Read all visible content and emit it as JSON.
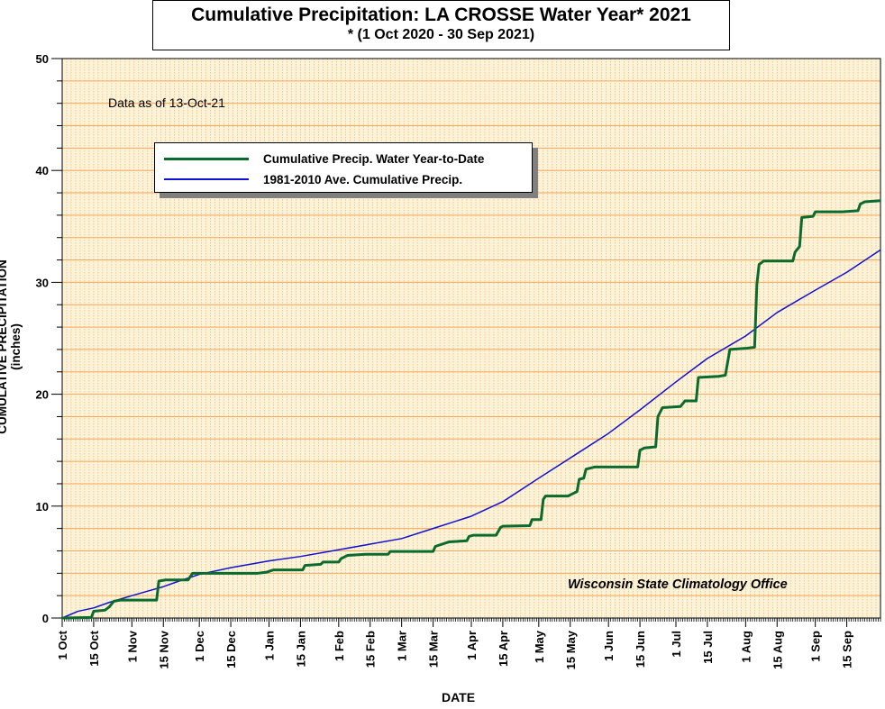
{
  "chart_data": {
    "type": "line",
    "title": "Cumulative Precipitation: LA CROSSE Water Year* 2021",
    "subtitle": "* (1 Oct 2020 - 30 Sep 2021)",
    "xlabel": "DATE",
    "ylabel": "CUMULATIVE PRECIPITATION (inches)",
    "ylim": [
      0,
      50
    ],
    "xlim": [
      "2020-10-01",
      "2021-09-30"
    ],
    "yticks": [
      "0",
      "10",
      "20",
      "30",
      "40",
      "50"
    ],
    "xticks": [
      "1 Oct",
      "15 Oct",
      "1 Nov",
      "15 Nov",
      "1 Dec",
      "15 Dec",
      "1 Jan",
      "15 Jan",
      "1 Feb",
      "15 Feb",
      "1 Mar",
      "15 Mar",
      "1 Apr",
      "15 Apr",
      "1 May",
      "15 May",
      "1 Jun",
      "15 Jun",
      "1 Jul",
      "15 Jul",
      "1 Aug",
      "15 Aug",
      "1 Sep",
      "15 Sep"
    ],
    "annotation_asof": "Data as of 13-Oct-21",
    "annotation_credit": "Wisconsin State Climatology Office",
    "grid": true,
    "legend_position": "top-left",
    "background_color": "#fdf3d8",
    "grid_color": "#f5a75a",
    "series": [
      {
        "name": "Cumulative Precip.  Water Year-to-Date",
        "color": "#0a6b2d",
        "points": [
          [
            "2020-10-01",
            0.0
          ],
          [
            "2020-10-14",
            0.05
          ],
          [
            "2020-10-15",
            0.6
          ],
          [
            "2020-10-20",
            0.7
          ],
          [
            "2020-10-22",
            1.0
          ],
          [
            "2020-10-24",
            1.5
          ],
          [
            "2020-10-27",
            1.6
          ],
          [
            "2020-11-12",
            1.6
          ],
          [
            "2020-11-13",
            3.3
          ],
          [
            "2020-11-16",
            3.4
          ],
          [
            "2020-11-26",
            3.4
          ],
          [
            "2020-11-28",
            4.0
          ],
          [
            "2020-12-27",
            4.0
          ],
          [
            "2020-12-31",
            4.1
          ],
          [
            "2021-01-03",
            4.3
          ],
          [
            "2021-01-16",
            4.3
          ],
          [
            "2021-01-17",
            4.7
          ],
          [
            "2021-01-24",
            4.8
          ],
          [
            "2021-01-25",
            5.0
          ],
          [
            "2021-02-01",
            5.0
          ],
          [
            "2021-02-02",
            5.3
          ],
          [
            "2021-02-05",
            5.6
          ],
          [
            "2021-02-13",
            5.7
          ],
          [
            "2021-02-23",
            5.7
          ],
          [
            "2021-02-24",
            5.95
          ],
          [
            "2021-03-15",
            5.95
          ],
          [
            "2021-03-16",
            6.4
          ],
          [
            "2021-03-22",
            6.8
          ],
          [
            "2021-03-30",
            6.9
          ],
          [
            "2021-03-31",
            7.3
          ],
          [
            "2021-04-02",
            7.4
          ],
          [
            "2021-04-12",
            7.4
          ],
          [
            "2021-04-14",
            8.1
          ],
          [
            "2021-04-15",
            8.2
          ],
          [
            "2021-04-27",
            8.25
          ],
          [
            "2021-04-28",
            8.8
          ],
          [
            "2021-05-02",
            8.8
          ],
          [
            "2021-05-03",
            10.6
          ],
          [
            "2021-05-04",
            10.9
          ],
          [
            "2021-05-14",
            10.9
          ],
          [
            "2021-05-18",
            11.3
          ],
          [
            "2021-05-19",
            12.4
          ],
          [
            "2021-05-21",
            12.5
          ],
          [
            "2021-05-22",
            13.3
          ],
          [
            "2021-05-26",
            13.5
          ],
          [
            "2021-06-14",
            13.5
          ],
          [
            "2021-06-15",
            15.0
          ],
          [
            "2021-06-17",
            15.2
          ],
          [
            "2021-06-22",
            15.3
          ],
          [
            "2021-06-23",
            18.0
          ],
          [
            "2021-06-25",
            18.8
          ],
          [
            "2021-07-03",
            18.9
          ],
          [
            "2021-07-05",
            19.4
          ],
          [
            "2021-07-10",
            19.4
          ],
          [
            "2021-07-11",
            21.5
          ],
          [
            "2021-07-20",
            21.6
          ],
          [
            "2021-07-23",
            21.7
          ],
          [
            "2021-07-25",
            24.0
          ],
          [
            "2021-08-01",
            24.1
          ],
          [
            "2021-08-05",
            24.2
          ],
          [
            "2021-08-06",
            29.8
          ],
          [
            "2021-08-07",
            31.6
          ],
          [
            "2021-08-09",
            31.9
          ],
          [
            "2021-08-22",
            31.9
          ],
          [
            "2021-08-23",
            32.7
          ],
          [
            "2021-08-25",
            33.2
          ],
          [
            "2021-08-26",
            35.8
          ],
          [
            "2021-08-31",
            35.9
          ],
          [
            "2021-09-01",
            36.3
          ],
          [
            "2021-09-13",
            36.3
          ],
          [
            "2021-09-20",
            36.4
          ],
          [
            "2021-09-21",
            37.0
          ],
          [
            "2021-09-23",
            37.2
          ],
          [
            "2021-09-30",
            37.3
          ]
        ]
      },
      {
        "name": "1981-2010 Ave. Cumulative Precip.",
        "color": "#1010d0",
        "points": [
          [
            "2020-10-01",
            0.0
          ],
          [
            "2020-10-08",
            0.6
          ],
          [
            "2020-10-15",
            0.9
          ],
          [
            "2020-10-22",
            1.4
          ],
          [
            "2020-11-01",
            2.0
          ],
          [
            "2020-11-08",
            2.4
          ],
          [
            "2020-11-15",
            2.8
          ],
          [
            "2020-11-22",
            3.3
          ],
          [
            "2020-12-01",
            3.9
          ],
          [
            "2020-12-15",
            4.5
          ],
          [
            "2021-01-01",
            5.1
          ],
          [
            "2021-01-15",
            5.5
          ],
          [
            "2021-02-01",
            6.1
          ],
          [
            "2021-02-15",
            6.6
          ],
          [
            "2021-03-01",
            7.1
          ],
          [
            "2021-03-15",
            8.0
          ],
          [
            "2021-04-01",
            9.1
          ],
          [
            "2021-04-15",
            10.4
          ],
          [
            "2021-05-01",
            12.5
          ],
          [
            "2021-05-15",
            14.3
          ],
          [
            "2021-06-01",
            16.5
          ],
          [
            "2021-06-15",
            18.6
          ],
          [
            "2021-07-01",
            21.1
          ],
          [
            "2021-07-15",
            23.2
          ],
          [
            "2021-08-01",
            25.2
          ],
          [
            "2021-08-15",
            27.3
          ],
          [
            "2021-09-01",
            29.3
          ],
          [
            "2021-09-15",
            30.9
          ],
          [
            "2021-09-30",
            32.9
          ]
        ]
      }
    ]
  }
}
